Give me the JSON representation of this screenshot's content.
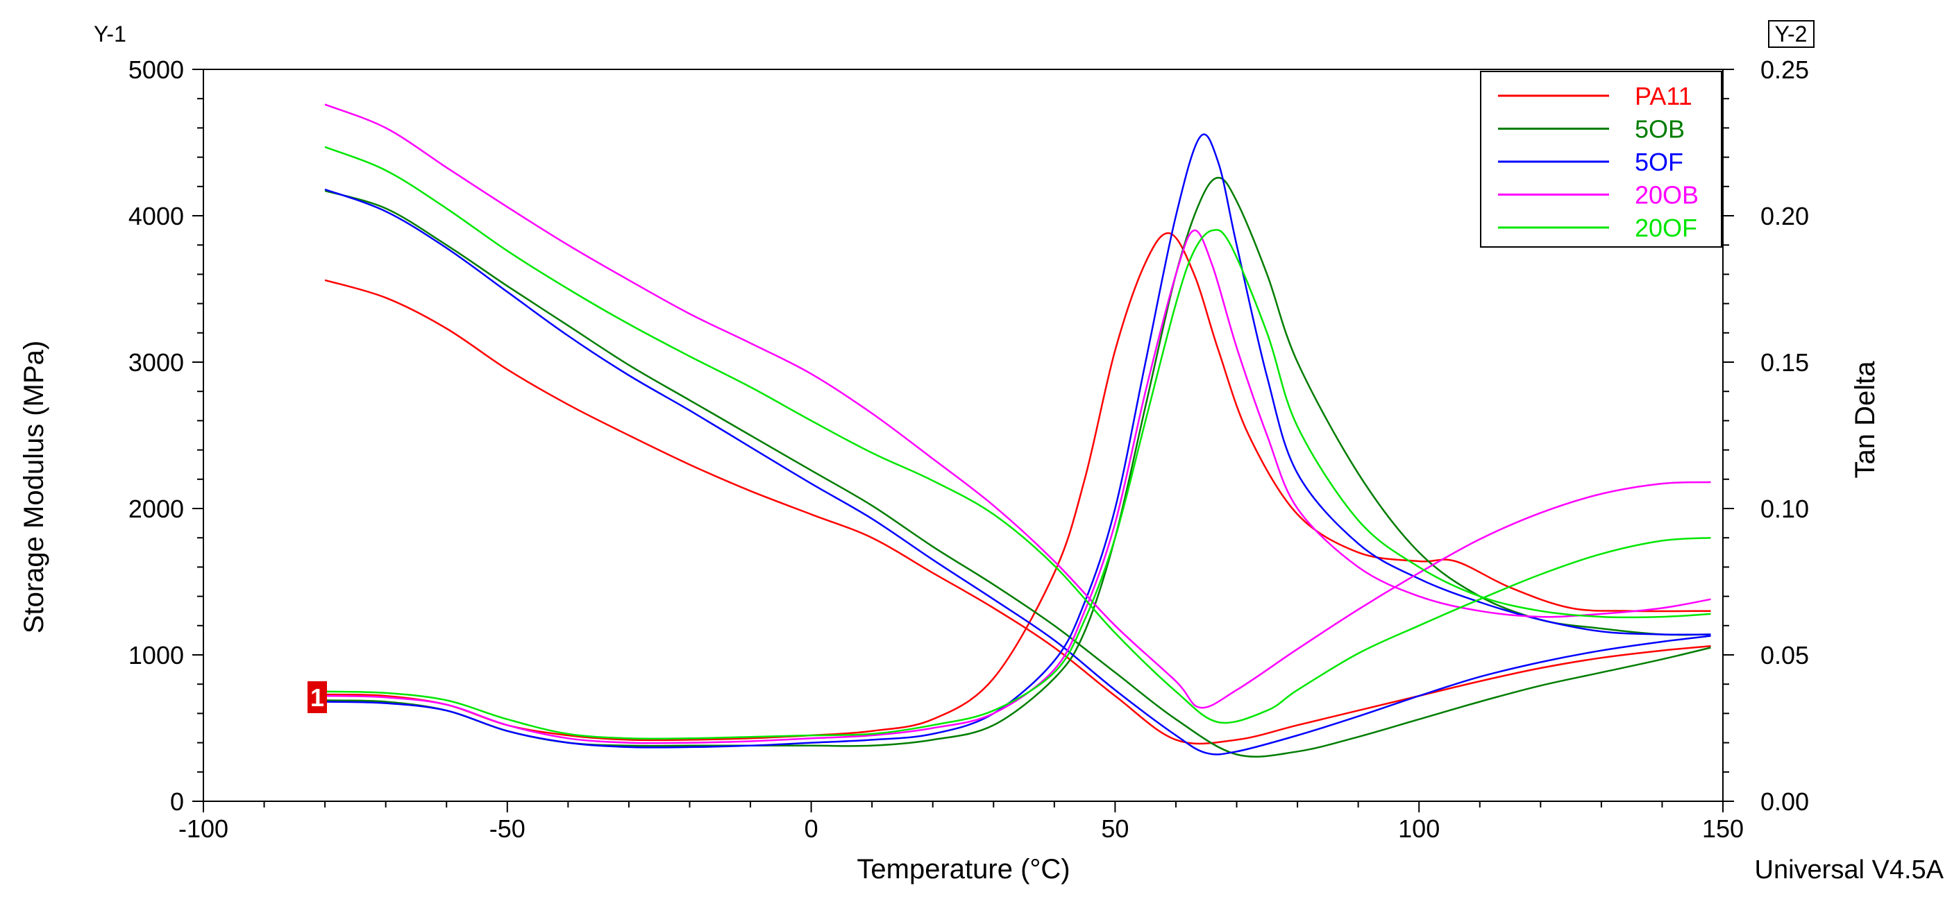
{
  "chart_data": {
    "type": "line",
    "title": "",
    "xlabel": "Temperature (°C)",
    "ylabel": "Storage Modulus (MPa)",
    "y2label": "Tan Delta",
    "y1_tag": "Y-1",
    "y2_tag": "Y-2",
    "footer": "Universal V4.5A",
    "marker_label": "1",
    "xlim": [
      -100,
      150
    ],
    "ylim": [
      0,
      5000
    ],
    "y2lim": [
      0,
      0.25
    ],
    "x_ticks": [
      "-100",
      "-50",
      "0",
      "50",
      "100",
      "150"
    ],
    "y_ticks": [
      "0",
      "1000",
      "2000",
      "3000",
      "4000",
      "5000"
    ],
    "y2_ticks": [
      "0.00",
      "0.05",
      "0.10",
      "0.15",
      "0.20",
      "0.25"
    ],
    "legend_position": "top-right",
    "series": [
      {
        "name": "PA11",
        "color": "#ff0000",
        "storage_modulus": {
          "x": [
            -80,
            -70,
            -60,
            -50,
            -40,
            -30,
            -20,
            -10,
            0,
            10,
            20,
            30,
            40,
            50,
            60,
            70,
            80,
            90,
            100,
            110,
            120,
            130,
            140,
            148
          ],
          "y": [
            3560,
            3440,
            3230,
            2950,
            2710,
            2500,
            2300,
            2120,
            1960,
            1800,
            1560,
            1320,
            1050,
            720,
            420,
            420,
            520,
            620,
            720,
            820,
            910,
            980,
            1030,
            1060
          ]
        },
        "tan_delta": {
          "x": [
            -80,
            -70,
            -60,
            -50,
            -40,
            -30,
            -20,
            -10,
            0,
            10,
            20,
            30,
            40,
            45,
            50,
            55,
            59,
            63,
            67,
            72,
            80,
            90,
            100,
            106,
            115,
            125,
            135,
            148
          ],
          "y": [
            0.0365,
            0.036,
            0.033,
            0.026,
            0.0225,
            0.021,
            0.021,
            0.0215,
            0.0225,
            0.024,
            0.028,
            0.042,
            0.078,
            0.11,
            0.154,
            0.184,
            0.194,
            0.18,
            0.154,
            0.125,
            0.098,
            0.085,
            0.082,
            0.082,
            0.073,
            0.066,
            0.065,
            0.065
          ]
        }
      },
      {
        "name": "5OB",
        "color": "#007d00",
        "storage_modulus": {
          "x": [
            -80,
            -70,
            -60,
            -50,
            -40,
            -30,
            -20,
            -10,
            0,
            10,
            20,
            30,
            40,
            50,
            60,
            70,
            80,
            90,
            100,
            110,
            120,
            130,
            140,
            148
          ],
          "y": [
            4170,
            4050,
            3800,
            3520,
            3250,
            2980,
            2740,
            2500,
            2260,
            2020,
            1740,
            1480,
            1200,
            880,
            560,
            320,
            340,
            440,
            560,
            680,
            790,
            880,
            970,
            1050
          ]
        },
        "tan_delta": {
          "x": [
            -80,
            -70,
            -60,
            -50,
            -40,
            -30,
            -20,
            -10,
            0,
            10,
            20,
            30,
            40,
            45,
            50,
            55,
            60,
            64,
            67,
            70,
            75,
            80,
            90,
            100,
            110,
            120,
            130,
            140,
            148
          ],
          "y": [
            0.0345,
            0.034,
            0.031,
            0.024,
            0.02,
            0.019,
            0.019,
            0.019,
            0.019,
            0.019,
            0.021,
            0.026,
            0.042,
            0.058,
            0.09,
            0.135,
            0.18,
            0.205,
            0.213,
            0.205,
            0.18,
            0.15,
            0.112,
            0.085,
            0.07,
            0.062,
            0.059,
            0.057,
            0.057
          ]
        }
      },
      {
        "name": "5OF",
        "color": "#0000ff",
        "storage_modulus": {
          "x": [
            -80,
            -70,
            -60,
            -50,
            -40,
            -30,
            -20,
            -10,
            0,
            10,
            20,
            30,
            40,
            50,
            60,
            65,
            70,
            80,
            90,
            100,
            110,
            120,
            130,
            140,
            148
          ],
          "y": [
            4180,
            4030,
            3780,
            3480,
            3180,
            2910,
            2670,
            2420,
            2170,
            1930,
            1650,
            1380,
            1100,
            760,
            450,
            330,
            340,
            450,
            580,
            720,
            850,
            950,
            1030,
            1090,
            1130
          ]
        },
        "tan_delta": {
          "x": [
            -80,
            -70,
            -60,
            -50,
            -40,
            -30,
            -20,
            -10,
            0,
            10,
            20,
            30,
            40,
            45,
            50,
            55,
            60,
            64,
            67,
            70,
            75,
            80,
            90,
            100,
            110,
            120,
            130,
            140,
            148
          ],
          "y": [
            0.034,
            0.0335,
            0.031,
            0.024,
            0.02,
            0.0185,
            0.0185,
            0.019,
            0.02,
            0.021,
            0.023,
            0.03,
            0.048,
            0.068,
            0.1,
            0.15,
            0.2,
            0.227,
            0.218,
            0.19,
            0.145,
            0.112,
            0.088,
            0.076,
            0.068,
            0.062,
            0.058,
            0.057,
            0.057
          ]
        }
      },
      {
        "name": "20OB",
        "color": "#ff00ff",
        "storage_modulus": {
          "x": [
            -80,
            -70,
            -60,
            -50,
            -40,
            -30,
            -20,
            -10,
            0,
            10,
            20,
            30,
            40,
            50,
            60,
            64,
            70,
            80,
            90,
            100,
            110,
            120,
            130,
            140,
            148
          ],
          "y": [
            4760,
            4600,
            4330,
            4060,
            3800,
            3560,
            3330,
            3130,
            2920,
            2650,
            2340,
            2020,
            1640,
            1200,
            820,
            640,
            760,
            1040,
            1310,
            1560,
            1790,
            1970,
            2100,
            2170,
            2180
          ]
        },
        "tan_delta": {
          "x": [
            -80,
            -70,
            -60,
            -50,
            -40,
            -30,
            -20,
            -10,
            0,
            10,
            20,
            30,
            40,
            45,
            50,
            55,
            60,
            63,
            66,
            70,
            75,
            80,
            90,
            100,
            110,
            120,
            130,
            140,
            148
          ],
          "y": [
            0.036,
            0.0355,
            0.033,
            0.026,
            0.0215,
            0.02,
            0.02,
            0.0205,
            0.0215,
            0.0225,
            0.025,
            0.03,
            0.045,
            0.065,
            0.095,
            0.14,
            0.18,
            0.195,
            0.183,
            0.155,
            0.125,
            0.1,
            0.08,
            0.07,
            0.065,
            0.063,
            0.064,
            0.066,
            0.069
          ]
        }
      },
      {
        "name": "20OF",
        "color": "#00e600",
        "storage_modulus": {
          "x": [
            -80,
            -70,
            -60,
            -50,
            -40,
            -30,
            -20,
            -10,
            0,
            10,
            20,
            30,
            40,
            50,
            60,
            67,
            75,
            80,
            90,
            100,
            110,
            120,
            130,
            140,
            148
          ],
          "y": [
            4470,
            4310,
            4050,
            3760,
            3500,
            3260,
            3040,
            2830,
            2600,
            2380,
            2190,
            1960,
            1610,
            1150,
            750,
            540,
            620,
            760,
            1010,
            1200,
            1380,
            1550,
            1690,
            1780,
            1800
          ]
        },
        "tan_delta": {
          "x": [
            -80,
            -70,
            -60,
            -50,
            -40,
            -30,
            -20,
            -10,
            0,
            10,
            20,
            30,
            40,
            45,
            50,
            55,
            60,
            63,
            66,
            69,
            75,
            80,
            90,
            100,
            110,
            120,
            130,
            140,
            148
          ],
          "y": [
            0.0375,
            0.037,
            0.0345,
            0.028,
            0.023,
            0.0215,
            0.0215,
            0.022,
            0.0225,
            0.023,
            0.026,
            0.031,
            0.044,
            0.062,
            0.09,
            0.13,
            0.17,
            0.188,
            0.195,
            0.19,
            0.16,
            0.128,
            0.096,
            0.08,
            0.07,
            0.065,
            0.063,
            0.063,
            0.064
          ]
        }
      }
    ]
  }
}
